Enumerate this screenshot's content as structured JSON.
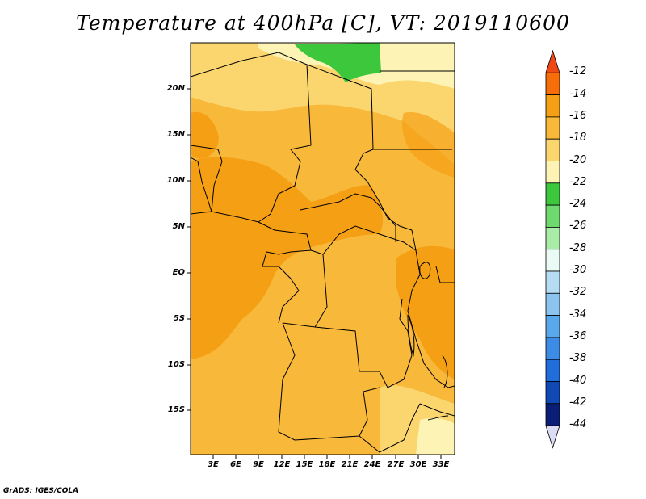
{
  "title": "Temperature at 400hPa [C], VT: 2019110600",
  "footer": "GrADS: IGES/COLA",
  "map": {
    "lat_labels": [
      "20N",
      "15N",
      "10N",
      "5N",
      "EQ",
      "5S",
      "10S",
      "15S"
    ],
    "lon_labels": [
      "3E",
      "6E",
      "9E",
      "12E",
      "15E",
      "18E",
      "21E",
      "24E",
      "27E",
      "30E",
      "33E"
    ],
    "variable": "Temperature",
    "level": "400hPa",
    "units": "C",
    "valid_time": "2019110600"
  },
  "colorbar": {
    "labels": [
      "-12",
      "-14",
      "-16",
      "-18",
      "-20",
      "-22",
      "-24",
      "-26",
      "-28",
      "-30",
      "-32",
      "-34",
      "-36",
      "-38",
      "-40",
      "-42",
      "-44"
    ],
    "colors": [
      "#f04a14",
      "#f56e0a",
      "#f59f14",
      "#f8b83a",
      "#fbd66e",
      "#fdf3b4",
      "#3cc73c",
      "#6ed96e",
      "#a8eca8",
      "#eafaf4",
      "#b6dcf4",
      "#8cc4f0",
      "#5aa8ec",
      "#3c8ce6",
      "#1f6edc",
      "#1048b4",
      "#0a1e78",
      "#dcdcf4"
    ]
  }
}
